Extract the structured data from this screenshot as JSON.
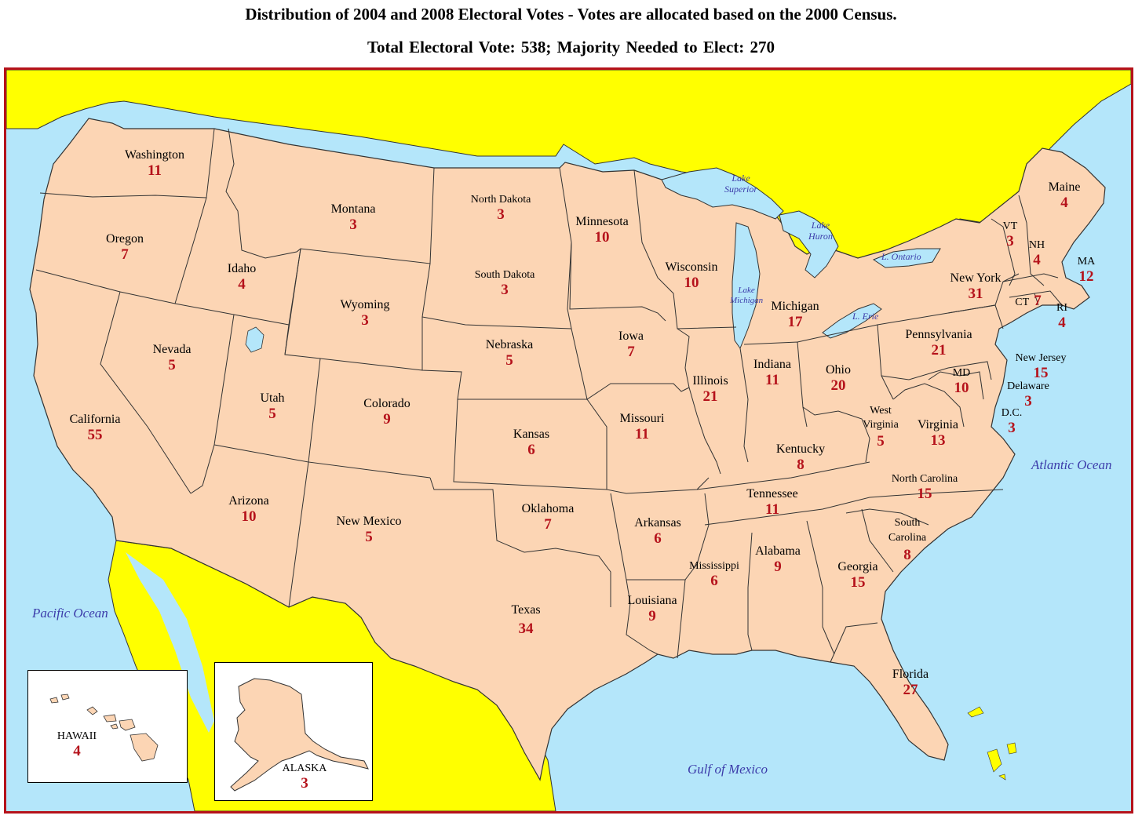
{
  "title_line1": "Distribution of 2004 and 2008 Electoral Votes - Votes are allocated based on the 2000 Census.",
  "title_line2": "Total Electoral Vote:  538;   Majority Needed to Elect:  270",
  "colors": {
    "land": "#fcd5b4",
    "neighbor": "#ffff00",
    "water": "#b4e6fa",
    "frame": "#b5121b",
    "vote_number": "#b5121b",
    "water_label": "#3c3caa",
    "border": "#333333"
  },
  "water_labels": {
    "pacific": "Pacific Ocean",
    "atlantic": "Atlantic Ocean",
    "gulf": "Gulf of Mexico",
    "lake_superior": "Lake\nSuperior",
    "lake_huron": "Lake\nHuron",
    "lake_michigan": "Lake\nMichigan",
    "lake_ontario": "L. Ontario",
    "lake_erie": "L. Erie"
  },
  "states": {
    "washington": {
      "name": "Washington",
      "votes": "11"
    },
    "oregon": {
      "name": "Oregon",
      "votes": "7"
    },
    "california": {
      "name": "California",
      "votes": "55"
    },
    "nevada": {
      "name": "Nevada",
      "votes": "5"
    },
    "idaho": {
      "name": "Idaho",
      "votes": "4"
    },
    "montana": {
      "name": "Montana",
      "votes": "3"
    },
    "wyoming": {
      "name": "Wyoming",
      "votes": "3"
    },
    "utah": {
      "name": "Utah",
      "votes": "5"
    },
    "arizona": {
      "name": "Arizona",
      "votes": "10"
    },
    "colorado": {
      "name": "Colorado",
      "votes": "9"
    },
    "new_mexico": {
      "name": "New Mexico",
      "votes": "5"
    },
    "north_dakota": {
      "name": "North Dakota",
      "votes": "3"
    },
    "south_dakota": {
      "name": "South Dakota",
      "votes": "3"
    },
    "nebraska": {
      "name": "Nebraska",
      "votes": "5"
    },
    "kansas": {
      "name": "Kansas",
      "votes": "6"
    },
    "oklahoma": {
      "name": "Oklahoma",
      "votes": "7"
    },
    "texas": {
      "name": "Texas",
      "votes": "34"
    },
    "minnesota": {
      "name": "Minnesota",
      "votes": "10"
    },
    "iowa": {
      "name": "Iowa",
      "votes": "7"
    },
    "missouri": {
      "name": "Missouri",
      "votes": "11"
    },
    "arkansas": {
      "name": "Arkansas",
      "votes": "6"
    },
    "louisiana": {
      "name": "Louisiana",
      "votes": "9"
    },
    "wisconsin": {
      "name": "Wisconsin",
      "votes": "10"
    },
    "illinois": {
      "name": "Illinois",
      "votes": "21"
    },
    "michigan": {
      "name": "Michigan",
      "votes": "17"
    },
    "indiana": {
      "name": "Indiana",
      "votes": "11"
    },
    "ohio": {
      "name": "Ohio",
      "votes": "20"
    },
    "kentucky": {
      "name": "Kentucky",
      "votes": "8"
    },
    "tennessee": {
      "name": "Tennessee",
      "votes": "11"
    },
    "mississippi": {
      "name": "Mississippi",
      "votes": "6"
    },
    "alabama": {
      "name": "Alabama",
      "votes": "9"
    },
    "georgia": {
      "name": "Georgia",
      "votes": "15"
    },
    "florida": {
      "name": "Florida",
      "votes": "27"
    },
    "south_carolina": {
      "name": "South\nCarolina",
      "votes": "8"
    },
    "north_carolina": {
      "name": "North Carolina",
      "votes": "15"
    },
    "virginia": {
      "name": "Virginia",
      "votes": "13"
    },
    "west_virginia": {
      "name": "West\nVirginia",
      "votes": "5"
    },
    "pennsylvania": {
      "name": "Pennsylvania",
      "votes": "21"
    },
    "new_york": {
      "name": "New York",
      "votes": "31"
    },
    "maine": {
      "name": "Maine",
      "votes": "4"
    },
    "vermont": {
      "name": "VT",
      "votes": "3"
    },
    "new_hampshire": {
      "name": "NH",
      "votes": "4"
    },
    "massachusetts": {
      "name": "MA",
      "votes": "12"
    },
    "rhode_island": {
      "name": "RI",
      "votes": "4"
    },
    "connecticut": {
      "name": "CT",
      "votes": "7"
    },
    "new_jersey": {
      "name": "New Jersey",
      "votes": "15"
    },
    "delaware": {
      "name": "Delaware",
      "votes": "3"
    },
    "maryland": {
      "name": "MD",
      "votes": "10"
    },
    "dc": {
      "name": "D.C.",
      "votes": "3"
    },
    "alaska": {
      "name": "ALASKA",
      "votes": "3"
    },
    "hawaii": {
      "name": "HAWAII",
      "votes": "4"
    }
  }
}
